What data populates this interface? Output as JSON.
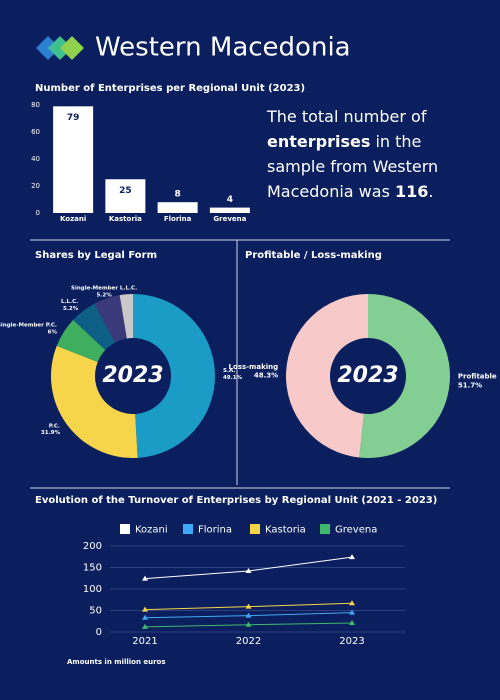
{
  "header": {
    "title": "Western Macedonia"
  },
  "summary": [
    "The total number of ",
    "enterprises",
    " in the sample from Western Macedonia was ",
    "116",
    "."
  ],
  "chart_data": [
    {
      "type": "bar",
      "title": "Number of Enterprises per Regional Unit (2023)",
      "categories": [
        "Kozani",
        "Kastoria",
        "Florina",
        "Grevena"
      ],
      "values": [
        79,
        25,
        8,
        4
      ],
      "color": "#ffffff",
      "ylim": [
        0,
        80
      ],
      "yticks": [
        0,
        20,
        40,
        60,
        80
      ]
    },
    {
      "type": "pie",
      "title": "Shares by Legal Form",
      "center_label": "2023",
      "categories": [
        "S.A.",
        "P.C.",
        "Single-Member P.C.",
        "L.L.C.",
        "Single-Member L.L.C.",
        null
      ],
      "values": [
        49.1,
        31.9,
        6,
        5.2,
        5.2,
        2.6
      ],
      "value_labels": [
        "49.1%",
        "31.9%",
        "6%",
        "5.2%",
        "5.2%",
        null
      ],
      "colors": [
        "#1a9cc7",
        "#f7d54a",
        "#3fae5e",
        "#0e5f86",
        "#3a3a7a",
        "#c9c9c9"
      ]
    },
    {
      "type": "pie",
      "title": "Profitable / Loss-making",
      "center_label": "2023",
      "categories": [
        "Profitable",
        "Loss-making"
      ],
      "values": [
        51.7,
        48.3
      ],
      "value_labels": [
        "51.7%",
        "48.3%"
      ],
      "colors": [
        "#83cf93",
        "#f8c9c9"
      ]
    },
    {
      "type": "line",
      "title": "Evolution of the Turnover of Enterprises by Regional Unit (2021 - 2023)",
      "note": "Amounts in million euros",
      "x": [
        2021,
        2022,
        2023
      ],
      "series": [
        {
          "name": "Kozani",
          "color": "#ffffff",
          "values": [
            124,
            142,
            174
          ]
        },
        {
          "name": "Florina",
          "color": "#3fa9f5",
          "values": [
            33,
            38,
            45
          ]
        },
        {
          "name": "Kastoria",
          "color": "#f5d547",
          "values": [
            52,
            59,
            67
          ]
        },
        {
          "name": "Grevena",
          "color": "#3fba6a",
          "values": [
            12,
            17,
            21
          ]
        }
      ],
      "ylim": [
        0,
        200
      ],
      "yticks": [
        0,
        50,
        100,
        150,
        200
      ],
      "grid": true
    }
  ]
}
